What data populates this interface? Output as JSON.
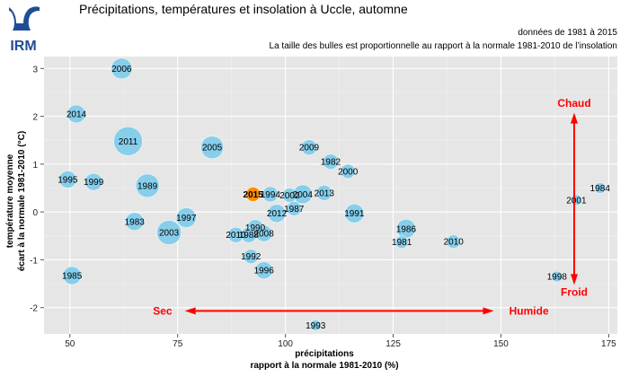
{
  "header": {
    "logo_text": "IRM",
    "title": "Précipitations, températures et insolation à Uccle, automne",
    "period": "données de 1981 à 2015",
    "bubble_note": "La taille des bulles est proportionnelle au rapport à la normale 1981-2010 de l’insolation"
  },
  "colors": {
    "panel": "#e6e6e6",
    "grid": "#ffffff",
    "bubble": "#87ceeb",
    "highlight": "#ff8c00",
    "arrows": "#ff0000"
  },
  "chart_data": {
    "type": "scatter",
    "xlabel_line1": "précipitations",
    "xlabel_line2": "rapport à la normale 1981-2010 (%)",
    "ylabel_line1": "température moyenne",
    "ylabel_line2": "écart à la normale 1981-2010 (°C)",
    "xlim": [
      44,
      177
    ],
    "ylim": [
      -2.55,
      3.25
    ],
    "xticks": [
      50,
      75,
      100,
      125,
      150,
      175
    ],
    "yticks": [
      -2,
      -1,
      0,
      1,
      2,
      3
    ],
    "grid": true,
    "highlight_year": "2015",
    "points": [
      {
        "label": "2006",
        "x": 62,
        "y": 3.0,
        "size": 1.15
      },
      {
        "label": "2014",
        "x": 51.5,
        "y": 2.05,
        "size": 1.0
      },
      {
        "label": "2011",
        "x": 63.5,
        "y": 1.48,
        "size": 1.6
      },
      {
        "label": "2005",
        "x": 83,
        "y": 1.35,
        "size": 1.25
      },
      {
        "label": "1995",
        "x": 49.5,
        "y": 0.68,
        "size": 0.95
      },
      {
        "label": "1999",
        "x": 55.5,
        "y": 0.63,
        "size": 0.95
      },
      {
        "label": "1989",
        "x": 68,
        "y": 0.55,
        "size": 1.3
      },
      {
        "label": "2015",
        "x": 92.5,
        "y": 0.37,
        "size": 0.8
      },
      {
        "label": "1983",
        "x": 65,
        "y": -0.2,
        "size": 1.0
      },
      {
        "label": "1997",
        "x": 77,
        "y": -0.12,
        "size": 1.1
      },
      {
        "label": "2003",
        "x": 73,
        "y": -0.43,
        "size": 1.35
      },
      {
        "label": "1985",
        "x": 50.5,
        "y": -1.33,
        "size": 1.0
      },
      {
        "label": "2009",
        "x": 105.5,
        "y": 1.35,
        "size": 0.85
      },
      {
        "label": "1982",
        "x": 110.5,
        "y": 1.05,
        "size": 0.85
      },
      {
        "label": "2000",
        "x": 114.5,
        "y": 0.85,
        "size": 0.8
      },
      {
        "label": "1994",
        "x": 96.5,
        "y": 0.37,
        "size": 0.85
      },
      {
        "label": "2002",
        "x": 101,
        "y": 0.35,
        "size": 0.8
      },
      {
        "label": "2004",
        "x": 104,
        "y": 0.37,
        "size": 1.05
      },
      {
        "label": "2013",
        "x": 109,
        "y": 0.4,
        "size": 0.85
      },
      {
        "label": "1987",
        "x": 102,
        "y": 0.07,
        "size": 0.8
      },
      {
        "label": "2012",
        "x": 98,
        "y": -0.03,
        "size": 1.0
      },
      {
        "label": "1991",
        "x": 116,
        "y": -0.03,
        "size": 1.05
      },
      {
        "label": "1990",
        "x": 93,
        "y": -0.33,
        "size": 0.9
      },
      {
        "label": "2010",
        "x": 88.5,
        "y": -0.48,
        "size": 0.85
      },
      {
        "label": "1988",
        "x": 91.5,
        "y": -0.48,
        "size": 0.85
      },
      {
        "label": "2008",
        "x": 95,
        "y": -0.45,
        "size": 0.9
      },
      {
        "label": "1986",
        "x": 128,
        "y": -0.35,
        "size": 1.05
      },
      {
        "label": "1981",
        "x": 127,
        "y": -0.63,
        "size": 0.7
      },
      {
        "label": "2010",
        "x": 139,
        "y": -0.62,
        "size": 0.75
      },
      {
        "label": "1992",
        "x": 92,
        "y": -0.93,
        "size": 0.8
      },
      {
        "label": "1996",
        "x": 95,
        "y": -1.22,
        "size": 0.95
      },
      {
        "label": "1998",
        "x": 163,
        "y": -1.35,
        "size": 0.6
      },
      {
        "label": "2001",
        "x": 167.5,
        "y": 0.25,
        "size": 0.6
      },
      {
        "label": "1984",
        "x": 173,
        "y": 0.5,
        "size": 0.6
      },
      {
        "label": "1993",
        "x": 107,
        "y": -2.37,
        "size": 0.6
      }
    ],
    "annotations": {
      "hot": "Chaud",
      "cold": "Froid",
      "dry": "Sec",
      "wet": "Humide"
    }
  }
}
